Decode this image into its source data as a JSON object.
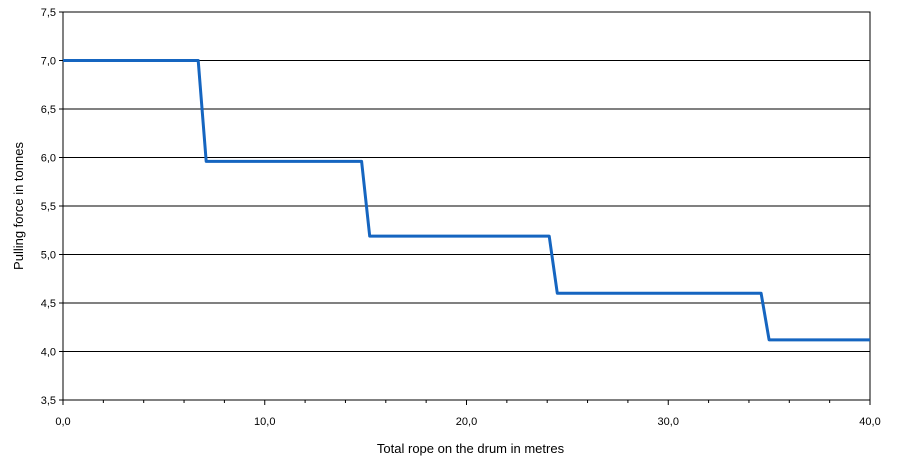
{
  "chart_data": {
    "type": "line",
    "xlabel": "Total rope on the drum in metres",
    "ylabel": "Pulling force in tonnes",
    "xlim": [
      0,
      40
    ],
    "ylim": [
      3.5,
      7.5
    ],
    "x_ticks": [
      "0,0",
      "10,0",
      "20,0",
      "30,0",
      "40,0"
    ],
    "y_ticks": [
      "3,5",
      "4,0",
      "4,5",
      "5,0",
      "5,5",
      "6,0",
      "6,5",
      "7,0",
      "7,5"
    ],
    "grid": "horizontal",
    "legend": "none",
    "series": [
      {
        "color": "#1565c0",
        "points": [
          [
            0.0,
            7.0
          ],
          [
            6.7,
            7.0
          ],
          [
            7.1,
            5.96
          ],
          [
            14.8,
            5.96
          ],
          [
            15.2,
            5.19
          ],
          [
            24.1,
            5.19
          ],
          [
            24.5,
            4.6
          ],
          [
            34.6,
            4.6
          ],
          [
            35.0,
            4.12
          ],
          [
            40.0,
            4.12
          ]
        ]
      }
    ]
  }
}
